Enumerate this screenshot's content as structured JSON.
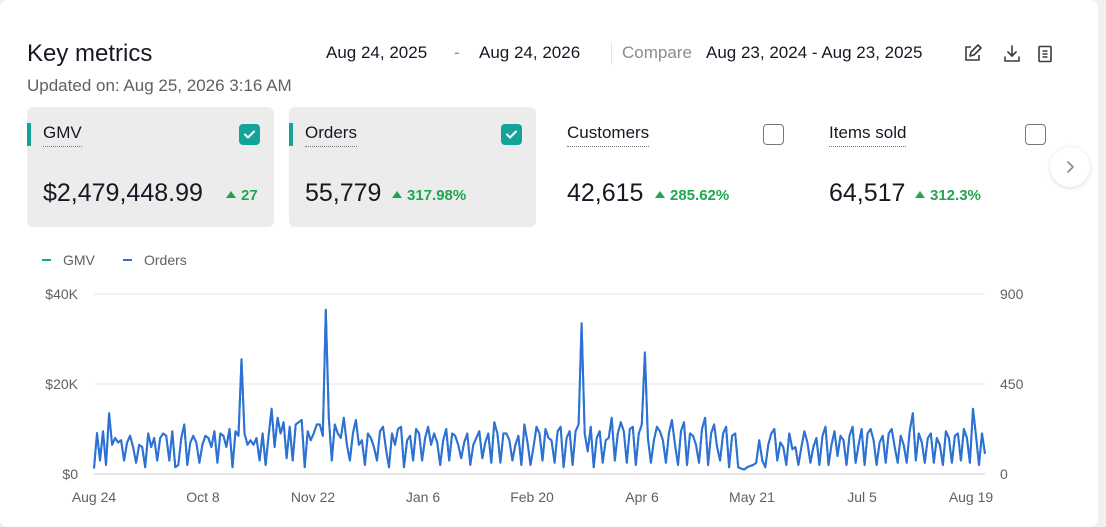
{
  "header": {
    "title": "Key metrics",
    "updated": "Updated on: Aug 25, 2026 3:16 AM",
    "date_start": "Aug 24, 2025",
    "date_sep": "-",
    "date_end": "Aug 24, 2026",
    "compare_label": "Compare",
    "compare_range": "Aug 23, 2024 - Aug 23, 2025",
    "icons": [
      "edit-icon",
      "download-icon",
      "report-icon"
    ]
  },
  "metrics": [
    {
      "label": "GMV",
      "value": "$2,479,448.99",
      "change": "27",
      "selected": true,
      "checked": true
    },
    {
      "label": "Orders",
      "value": "55,779",
      "change": "317.98%",
      "selected": true,
      "checked": true
    },
    {
      "label": "Customers",
      "value": "42,615",
      "change": "285.62%",
      "selected": false,
      "checked": false
    },
    {
      "label": "Items sold",
      "value": "64,517",
      "change": "312.3%",
      "selected": false,
      "checked": false
    }
  ],
  "legend": {
    "gmv": "GMV",
    "orders": "Orders"
  },
  "colors": {
    "gmv": "#12a39a",
    "orders": "#2f6fd6",
    "positive": "#1fa64f",
    "accent": "#12a39a"
  },
  "chart_data": {
    "type": "line",
    "x_ticks": [
      "Aug 24",
      "Oct 8",
      "Nov 22",
      "Jan 6",
      "Feb 20",
      "Apr 6",
      "May 21",
      "Jul 5",
      "Aug 19"
    ],
    "y_left_ticks": [
      "$0",
      "$20K",
      "$40K"
    ],
    "y_right_ticks": [
      "0",
      "450",
      "900"
    ],
    "y_left_range": [
      0,
      40000
    ],
    "y_right_range": [
      0,
      900
    ],
    "grid": true,
    "legend_position": "top-left",
    "series": [
      {
        "name": "GMV",
        "axis": "left",
        "values": [
          1200,
          9000,
          3000,
          9500,
          2000,
          13500,
          6500,
          8000,
          7000,
          7500,
          3000,
          7000,
          8500,
          6000,
          2500,
          6500,
          6000,
          1500,
          9000,
          6000,
          8000,
          3000,
          8000,
          9000,
          8500,
          3000,
          9500,
          1500,
          2000,
          8000,
          11000,
          2000,
          7000,
          8500,
          7000,
          2500,
          6500,
          8500,
          8000,
          6000,
          9500,
          2500,
          9000,
          8500,
          6000,
          10000,
          1500,
          9500,
          8500,
          25500,
          9000,
          6500,
          7500,
          6500,
          8000,
          3000,
          9000,
          2000,
          8500,
          14500,
          6000,
          12500,
          9000,
          11500,
          3500,
          10500,
          3000,
          11000,
          11500,
          12000,
          1500,
          9500,
          7500,
          9000,
          11000,
          11000,
          8500,
          36500,
          12500,
          3000,
          11000,
          9000,
          8000,
          12500,
          6500,
          3000,
          9000,
          12000,
          6500,
          7500,
          2000,
          9000,
          8000,
          6000,
          3000,
          9500,
          10500,
          5500,
          1500,
          9000,
          6500,
          10000,
          10500,
          1500,
          7500,
          8500,
          3000,
          10000,
          9000,
          3000,
          8000,
          10500,
          6500,
          9000,
          7000,
          2000,
          7500,
          10000,
          3000,
          9000,
          8500,
          6500,
          3500,
          7000,
          9000,
          2000,
          6500,
          8000,
          9500,
          3500,
          7000,
          9000,
          2500,
          11500,
          9000,
          2500,
          9000,
          9000,
          7500,
          3000,
          6500,
          8500,
          2000,
          11000,
          7000,
          2000,
          6000,
          10500,
          9000,
          3000,
          10000,
          8000,
          7500,
          2500,
          9500,
          10500,
          1500,
          8000,
          9500,
          2000,
          9500,
          11000,
          33500,
          9000,
          5000,
          10500,
          1500,
          8000,
          9500,
          2500,
          7500,
          8000,
          12500,
          3000,
          9000,
          11500,
          9500,
          2500,
          10000,
          10500,
          2000,
          9000,
          11000,
          27000,
          8000,
          2500,
          7500,
          10500,
          9500,
          7500,
          2500,
          9000,
          12000,
          6500,
          2000,
          9500,
          11500,
          2000,
          9000,
          8500,
          6500,
          2500,
          10000,
          12500,
          2000,
          9000,
          11000,
          6000,
          3000,
          9000,
          10500,
          1500,
          8500,
          9000,
          1500,
          1200,
          1000,
          1500,
          1800,
          2000,
          2500,
          7500,
          3000,
          1500,
          6500,
          9000,
          10000,
          3000,
          7000,
          6000,
          2000,
          9000,
          5500,
          6000,
          2000,
          6000,
          9500,
          7000,
          2500,
          6000,
          8000,
          2000,
          8500,
          10500,
          2000,
          6500,
          9500,
          4000,
          8500,
          7500,
          2000,
          8500,
          10500,
          2500,
          6500,
          10000,
          2000,
          9000,
          10000,
          7500,
          2000,
          7000,
          8500,
          2500,
          9000,
          10000,
          6000,
          2500,
          8500,
          6500,
          2500,
          9500,
          13500,
          3000,
          9000,
          7000,
          2500,
          8000,
          9000,
          2500,
          8000,
          6500,
          2000,
          9500,
          8000,
          2500,
          8500,
          9000,
          3000,
          10000,
          8000,
          2500,
          14500,
          8500,
          2000,
          9000,
          4500
        ]
      },
      {
        "name": "Orders",
        "axis": "right",
        "values": [
          27,
          205,
          67,
          214,
          45,
          304,
          146,
          180,
          158,
          169,
          67,
          158,
          191,
          135,
          56,
          146,
          135,
          34,
          203,
          135,
          180,
          67,
          180,
          203,
          191,
          67,
          214,
          34,
          45,
          180,
          248,
          45,
          158,
          191,
          158,
          56,
          146,
          191,
          180,
          135,
          214,
          56,
          203,
          191,
          135,
          225,
          34,
          214,
          191,
          574,
          203,
          146,
          169,
          146,
          180,
          67,
          203,
          45,
          191,
          326,
          135,
          281,
          203,
          259,
          79,
          236,
          67,
          248,
          259,
          270,
          34,
          214,
          169,
          203,
          248,
          248,
          191,
          821,
          281,
          67,
          248,
          203,
          180,
          281,
          146,
          67,
          203,
          270,
          146,
          169,
          45,
          203,
          180,
          135,
          67,
          214,
          236,
          124,
          34,
          203,
          146,
          225,
          236,
          34,
          169,
          191,
          67,
          225,
          203,
          67,
          180,
          236,
          146,
          203,
          158,
          45,
          169,
          225,
          67,
          203,
          191,
          146,
          79,
          158,
          203,
          45,
          146,
          180,
          214,
          79,
          158,
          203,
          56,
          259,
          203,
          56,
          203,
          203,
          169,
          67,
          146,
          191,
          45,
          248,
          158,
          45,
          135,
          236,
          203,
          67,
          225,
          180,
          169,
          56,
          214,
          236,
          34,
          180,
          214,
          45,
          214,
          248,
          754,
          203,
          113,
          236,
          34,
          180,
          214,
          56,
          169,
          180,
          281,
          67,
          203,
          259,
          214,
          56,
          225,
          236,
          45,
          203,
          248,
          608,
          180,
          56,
          169,
          236,
          214,
          169,
          56,
          203,
          270,
          146,
          45,
          214,
          259,
          45,
          203,
          191,
          146,
          56,
          225,
          281,
          45,
          203,
          248,
          135,
          67,
          203,
          236,
          34,
          191,
          203,
          34,
          27,
          22,
          34,
          40,
          45,
          56,
          169,
          67,
          34,
          146,
          203,
          225,
          67,
          158,
          135,
          45,
          203,
          124,
          135,
          45,
          135,
          214,
          158,
          56,
          135,
          180,
          45,
          191,
          236,
          45,
          146,
          214,
          90,
          191,
          169,
          45,
          191,
          236,
          56,
          146,
          225,
          45,
          203,
          225,
          169,
          45,
          158,
          191,
          56,
          203,
          225,
          135,
          56,
          191,
          146,
          56,
          214,
          304,
          67,
          203,
          158,
          56,
          180,
          203,
          56,
          180,
          146,
          45,
          214,
          180,
          56,
          191,
          203,
          67,
          225,
          180,
          56,
          326,
          191,
          45,
          203,
          101
        ]
      }
    ]
  }
}
